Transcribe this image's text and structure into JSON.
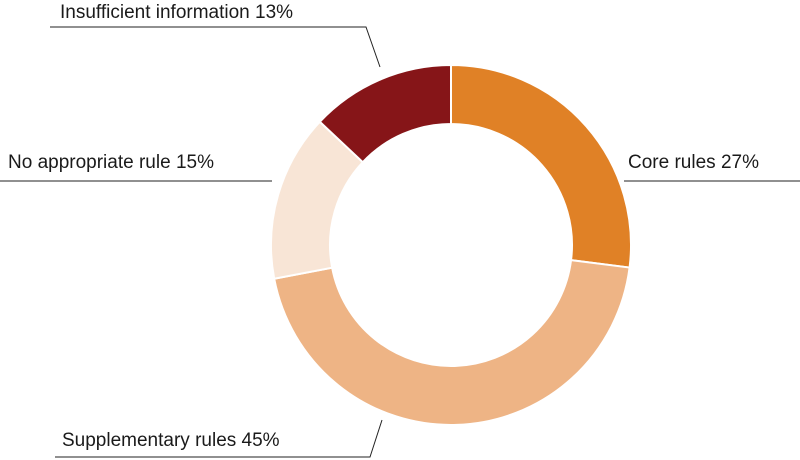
{
  "chart_data": {
    "type": "pie",
    "donut": true,
    "title": "",
    "slices": [
      {
        "label": "Core rules",
        "value": 27,
        "value_text": "27%",
        "color": "#e08126"
      },
      {
        "label": "Supplementary rules",
        "value": 45,
        "value_text": "45%",
        "color": "#eeb485"
      },
      {
        "label": "No appropriate rule",
        "value": 15,
        "value_text": "15%",
        "color": "#f8e5d6"
      },
      {
        "label": "Insufficient information",
        "value": 13,
        "value_text": "13%",
        "color": "#861518"
      }
    ]
  }
}
